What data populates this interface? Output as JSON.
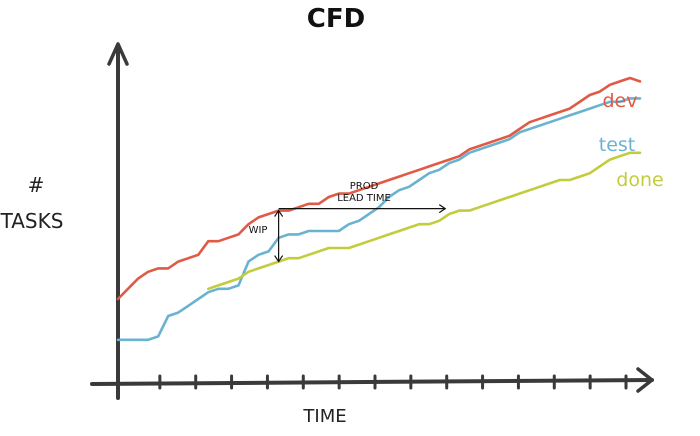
{
  "chart_data": {
    "type": "line",
    "title": "CFD",
    "xlabel": "TIME",
    "ylabel_top": "#",
    "ylabel_bottom": "TASKS",
    "grid": false,
    "legend_position": "right",
    "xlim": [
      0,
      26
    ],
    "ylim": [
      0,
      100
    ],
    "x_tick_count": 14,
    "x": [
      0,
      0.5,
      1,
      1.5,
      2,
      2.5,
      3,
      3.5,
      4,
      4.5,
      5,
      5.5,
      6,
      6.5,
      7,
      7.5,
      8,
      8.5,
      9,
      9.5,
      10,
      10.5,
      11,
      11.5,
      12,
      12.5,
      13,
      13.5,
      14,
      14.5,
      15,
      15.5,
      16,
      16.5,
      17,
      17.5,
      18,
      18.5,
      19,
      19.5,
      20,
      20.5,
      21,
      21.5,
      22,
      22.5,
      23,
      23.5,
      24,
      24.5,
      25,
      25.5,
      26
    ],
    "series": [
      {
        "name": "dev",
        "color": "#e05a45",
        "values": [
          25,
          28,
          31,
          33,
          34,
          34,
          36,
          37,
          38,
          42,
          42,
          43,
          44,
          47,
          49,
          50,
          51,
          51,
          52,
          53,
          53,
          55,
          56,
          56,
          57,
          58,
          59,
          60,
          61,
          62,
          63,
          64,
          65,
          66,
          67,
          69,
          70,
          71,
          72,
          73,
          75,
          77,
          78,
          79,
          80,
          81,
          83,
          85,
          86,
          88,
          89,
          90,
          89
        ]
      },
      {
        "name": "test",
        "color": "#69b3d1",
        "values": [
          13,
          13,
          13,
          13,
          14,
          20,
          21,
          23,
          25,
          27,
          28,
          28,
          29,
          36,
          38,
          39,
          43,
          44,
          44,
          45,
          45,
          45,
          45,
          47,
          48,
          50,
          52,
          55,
          57,
          58,
          60,
          62,
          63,
          65,
          66,
          68,
          69,
          70,
          71,
          72,
          74,
          75,
          76,
          77,
          78,
          79,
          80,
          81,
          82,
          83,
          83,
          84,
          84
        ]
      },
      {
        "name": "done",
        "color": "#c3cc3c",
        "values": [
          null,
          null,
          null,
          null,
          null,
          null,
          null,
          null,
          null,
          28,
          29,
          30,
          31,
          33,
          34,
          35,
          36,
          37,
          37,
          38,
          39,
          40,
          40,
          40,
          41,
          42,
          43,
          44,
          45,
          46,
          47,
          47,
          48,
          50,
          51,
          51,
          52,
          53,
          54,
          55,
          56,
          57,
          58,
          59,
          60,
          60,
          61,
          62,
          64,
          66,
          67,
          68,
          68
        ]
      }
    ],
    "annotations": {
      "wip_label": "WIP",
      "lead_time_line1": "PROD",
      "lead_time_line2": "LEAD TIME",
      "wip_x": 8,
      "wip_top": 51,
      "wip_bottom": 36,
      "lead_time_x_start": 8,
      "lead_time_x_end": 16.3,
      "lead_time_y": 51
    }
  }
}
